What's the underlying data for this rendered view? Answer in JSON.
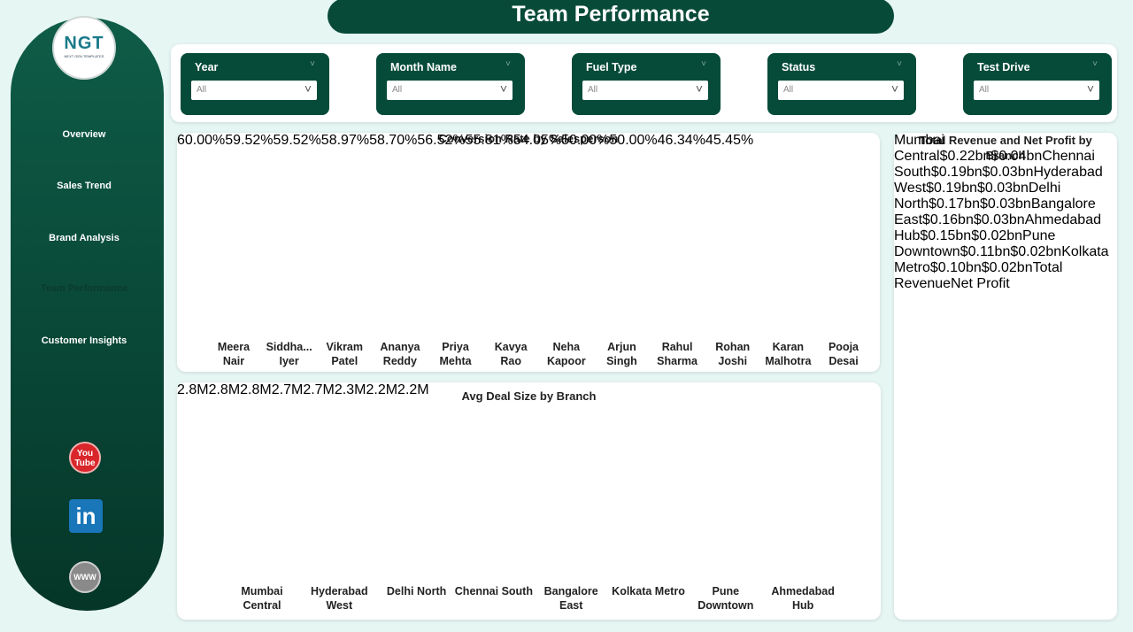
{
  "header": {
    "title": "Team Performance"
  },
  "logo": {
    "text": "NGT",
    "tagline": "NEXT GEN TEMPLATES"
  },
  "nav": {
    "items": [
      "Overview",
      "Sales Trend",
      "Brand Analysis",
      "Team Performance",
      "Customer Insights"
    ],
    "active": 3
  },
  "filters": [
    {
      "label": "Year",
      "value": "All"
    },
    {
      "label": "Month Name",
      "value": "All"
    },
    {
      "label": "Fuel Type",
      "value": "All"
    },
    {
      "label": "Status",
      "value": "All"
    },
    {
      "label": "Test Drive",
      "value": "All"
    }
  ],
  "social": [
    "You Tube",
    "in",
    "WWW"
  ],
  "chart_data": [
    {
      "type": "area",
      "title": "Conversion Rate by Salesperson",
      "categories": [
        "Meera Nair",
        "Siddha... Iyer",
        "Vikram Patel",
        "Ananya Reddy",
        "Priya Mehta",
        "Kavya Rao",
        "Neha Kapoor",
        "Arjun Singh",
        "Rahul Sharma",
        "Rohan Joshi",
        "Karan Malhotra",
        "Pooja Desai"
      ],
      "values": [
        60,
        59.52,
        59.52,
        58.97,
        58.7,
        56.52,
        55.81,
        54.05,
        50,
        50,
        46.34,
        45.45
      ],
      "value_labels": [
        "60.00%",
        "59.52%",
        "59.52%",
        "58.97%",
        "58.70%",
        "56.52%",
        "55.81%",
        "54.05%",
        "50.00%",
        "50.00%",
        "46.34%",
        "45.45%"
      ],
      "ylim": [
        40,
        60
      ],
      "color": "#98b7ad",
      "line_color": "#0c4a3a"
    },
    {
      "type": "bar",
      "title": "Avg Deal Size by Branch",
      "categories": [
        "Mumbai Central",
        "Hyderabad West",
        "Delhi North",
        "Chennai South",
        "Bangalore East",
        "Kolkata Metro",
        "Pune Downtown",
        "Ahmedabad Hub"
      ],
      "values": [
        2.8,
        2.8,
        2.8,
        2.7,
        2.7,
        2.3,
        2.2,
        2.2
      ],
      "value_labels": [
        "2.8M",
        "2.8M",
        "2.8M",
        "2.7M",
        "2.7M",
        "2.3M",
        "2.2M",
        "2.2M"
      ],
      "ylim": [
        0,
        3
      ],
      "color": "#024535"
    },
    {
      "type": "hbar",
      "title": "Total Revenue and Net Profit by Branch",
      "categories": [
        "Mumbai Central",
        "Chennai South",
        "Hyderabad West",
        "Delhi North",
        "Bangalore East",
        "Ahmedabad Hub",
        "Pune Downtown",
        "Kolkata Metro"
      ],
      "series": [
        {
          "name": "Total Revenue",
          "color": "#84bfab",
          "values": [
            0.22,
            0.19,
            0.19,
            0.17,
            0.16,
            0.15,
            0.11,
            0.1
          ],
          "value_labels": [
            "$0.22bn",
            "$0.19bn",
            "$0.19bn",
            "$0.17bn",
            "$0.16bn",
            "$0.15bn",
            "$0.11bn",
            "$0.10bn"
          ]
        },
        {
          "name": "Net Profit",
          "color": "#a8ddd0",
          "values": [
            0.04,
            0.03,
            0.03,
            0.03,
            0.03,
            0.02,
            0.02,
            0.02
          ],
          "value_labels": [
            "$0.04bn",
            "$0.03bn",
            "$0.03bn",
            "$0.03bn",
            "$0.03bn",
            "$0.02bn",
            "$0.02bn",
            "$0.02bn"
          ]
        }
      ],
      "xlim": [
        0,
        0.3
      ],
      "legend": "bottom"
    }
  ]
}
